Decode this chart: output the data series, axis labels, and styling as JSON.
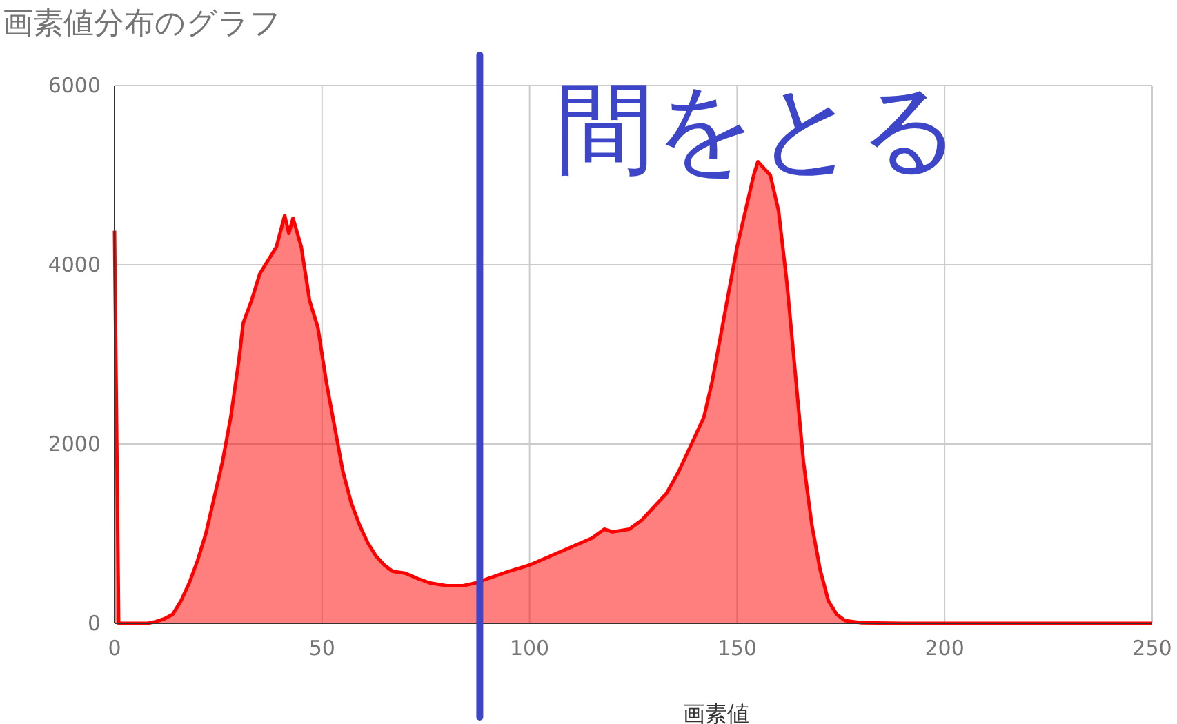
{
  "chart_data": {
    "type": "area",
    "title": "画素値分布のグラフ",
    "xlabel": "画素値",
    "x": [
      0,
      1,
      2,
      5,
      8,
      10,
      12,
      14,
      16,
      18,
      20,
      22,
      24,
      26,
      28,
      30,
      31,
      33,
      35,
      37,
      39,
      41,
      42,
      43,
      45,
      47,
      49,
      51,
      53,
      55,
      57,
      59,
      61,
      63,
      65,
      67,
      70,
      73,
      76,
      80,
      84,
      87,
      90,
      95,
      100,
      105,
      110,
      115,
      118,
      120,
      124,
      127,
      130,
      133,
      136,
      139,
      142,
      144,
      146,
      148,
      150,
      152,
      154,
      155,
      157,
      158,
      160,
      162,
      164,
      166,
      168,
      170,
      172,
      174,
      176,
      180,
      190,
      220,
      250
    ],
    "series": [
      {
        "color": "#ff0000",
        "values": [
          4380,
          0,
          0,
          0,
          0,
          20,
          50,
          100,
          250,
          450,
          700,
          1000,
          1400,
          1800,
          2300,
          2950,
          3350,
          3600,
          3900,
          4050,
          4200,
          4550,
          4350,
          4520,
          4200,
          3600,
          3300,
          2700,
          2200,
          1700,
          1350,
          1100,
          900,
          750,
          650,
          580,
          560,
          500,
          450,
          420,
          420,
          450,
          500,
          580,
          650,
          750,
          850,
          950,
          1050,
          1020,
          1050,
          1150,
          1300,
          1450,
          1700,
          2000,
          2300,
          2700,
          3200,
          3700,
          4200,
          4600,
          5000,
          5150,
          5050,
          5000,
          4600,
          3800,
          2800,
          1800,
          1100,
          600,
          250,
          100,
          30,
          5,
          0,
          0,
          0
        ]
      }
    ],
    "xlim": [
      0,
      250
    ],
    "xticks": [
      0,
      50,
      100,
      150,
      200,
      250
    ],
    "ylim": [
      0,
      6000
    ],
    "yticks": [
      0,
      2000,
      4000,
      6000
    ],
    "grid": true,
    "ref_lines": [
      {
        "axis": "x",
        "value": 88,
        "label": "間をとる",
        "color": "#3d45c8"
      }
    ]
  }
}
